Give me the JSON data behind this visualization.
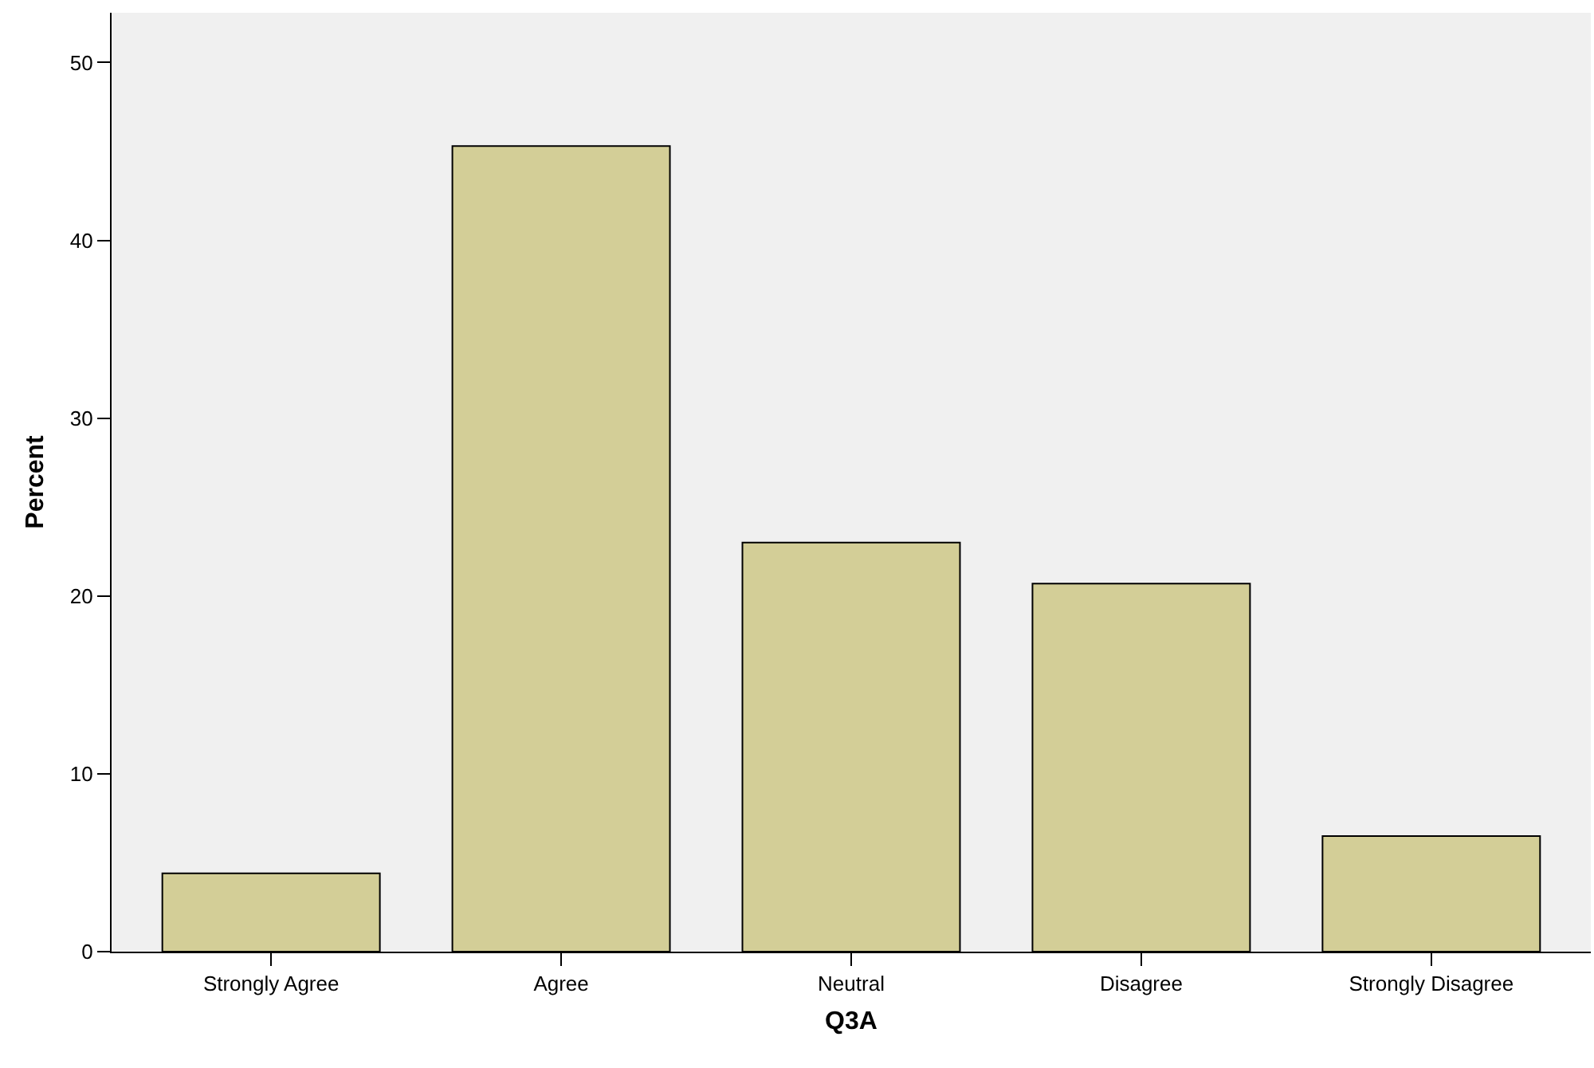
{
  "chart_data": {
    "type": "bar",
    "xlabel": "Q3A",
    "ylabel": "Percent",
    "categories": [
      "Strongly Agree",
      "Agree",
      "Neutral",
      "Disagree",
      "Strongly Disagree"
    ],
    "values": [
      4.4,
      45.3,
      23.0,
      20.7,
      6.5
    ],
    "color": "#d3ce97",
    "ylim": [
      0,
      52.8
    ],
    "yticks": [
      0,
      10,
      20,
      30,
      40,
      50
    ],
    "grid": false
  }
}
